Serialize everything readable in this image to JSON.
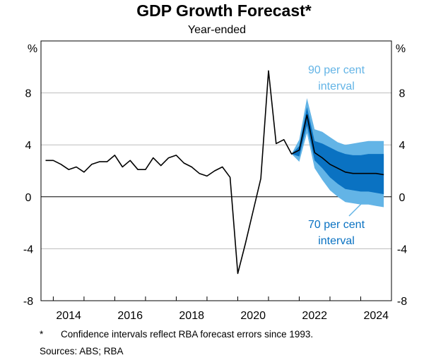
{
  "title": "GDP Growth Forecast*",
  "subtitle": "Year-ended",
  "notes": {
    "marker": "*",
    "footnote": "Confidence intervals reflect RBA forecast errors since 1993.",
    "sources": "Sources: ABS; RBA"
  },
  "colors": {
    "interval90": "#63b4e6",
    "interval70": "#0a72c2",
    "line": "#000000",
    "grid": "#bdbdbd",
    "annotation90": "#63b4e6",
    "annotation70": "#0a72c2"
  },
  "chart_data": {
    "type": "line",
    "title": "GDP Growth Forecast*",
    "subtitle": "Year-ended",
    "y_unit": "%",
    "ylim": [
      -8,
      12
    ],
    "yticks": [
      8,
      4,
      0,
      -4,
      -8
    ],
    "xlim": [
      2013.6,
      2025.0
    ],
    "xticks": [
      2014,
      2016,
      2018,
      2020,
      2022,
      2024
    ],
    "grid": true,
    "series": [
      {
        "kind": "history",
        "x": [
          2013.75,
          2014.0,
          2014.25,
          2014.5,
          2014.75,
          2015.0,
          2015.25,
          2015.5,
          2015.75,
          2016.0,
          2016.25,
          2016.5,
          2016.75,
          2017.0,
          2017.25,
          2017.5,
          2017.75,
          2018.0,
          2018.25,
          2018.5,
          2018.75,
          2019.0,
          2019.25,
          2019.5,
          2019.75,
          2020.0,
          2020.25,
          2020.5,
          2020.75,
          2021.0,
          2021.25,
          2021.5,
          2021.75,
          2022.0,
          2022.25,
          2022.5
        ],
        "values": [
          2.8,
          2.8,
          2.5,
          2.1,
          2.3,
          1.9,
          2.5,
          2.7,
          2.7,
          3.2,
          2.3,
          2.8,
          2.1,
          2.1,
          3.0,
          2.4,
          3.0,
          3.2,
          2.6,
          2.3,
          1.8,
          1.6,
          2.0,
          2.3,
          1.5,
          -5.9,
          -3.6,
          -1.1,
          1.4,
          9.7,
          4.1,
          4.4,
          3.3,
          3.6,
          6.3,
          3.4
        ]
      },
      {
        "kind": "forecast",
        "x": [
          2022.5,
          2022.75,
          2023.0,
          2023.25,
          2023.5,
          2023.75,
          2024.0,
          2024.25,
          2024.5,
          2024.75
        ],
        "values": [
          3.4,
          3.0,
          2.5,
          2.2,
          1.9,
          1.8,
          1.8,
          1.8,
          1.8,
          1.7
        ]
      }
    ],
    "bands": [
      {
        "name": "90 per cent interval",
        "x": [
          2021.75,
          2022.0,
          2022.25,
          2022.5,
          2022.75,
          2023.0,
          2023.25,
          2023.5,
          2023.75,
          2024.0,
          2024.25,
          2024.5,
          2024.75
        ],
        "lower": [
          3.3,
          2.7,
          4.9,
          2.2,
          1.3,
          0.5,
          0.0,
          -0.4,
          -0.5,
          -0.6,
          -0.6,
          -0.7,
          -0.8
        ],
        "upper": [
          3.3,
          4.4,
          7.6,
          5.2,
          5.0,
          4.6,
          4.2,
          4.0,
          4.1,
          4.2,
          4.3,
          4.3,
          4.3
        ]
      },
      {
        "name": "70 per cent interval",
        "x": [
          2021.75,
          2022.0,
          2022.25,
          2022.5,
          2022.75,
          2023.0,
          2023.25,
          2023.5,
          2023.75,
          2024.0,
          2024.25,
          2024.5,
          2024.75
        ],
        "lower": [
          3.3,
          3.1,
          5.5,
          2.8,
          2.2,
          1.5,
          1.0,
          0.6,
          0.5,
          0.4,
          0.4,
          0.3,
          0.2
        ],
        "upper": [
          3.3,
          3.9,
          6.9,
          4.3,
          4.1,
          3.8,
          3.5,
          3.3,
          3.2,
          3.2,
          3.3,
          3.3,
          3.3
        ]
      }
    ],
    "annotations": [
      {
        "text": [
          "90 per cent",
          "interval"
        ],
        "color": "#63b4e6"
      },
      {
        "text": [
          "70 per cent",
          "interval"
        ],
        "color": "#0a72c2"
      }
    ]
  }
}
